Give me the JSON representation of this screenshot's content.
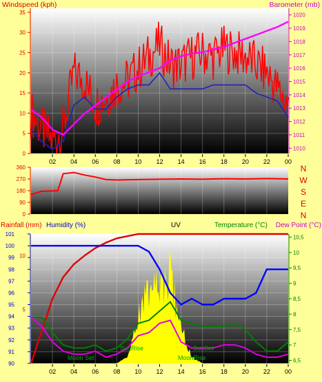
{
  "colors": {
    "bg": "#ffff99",
    "wind_speed": "#ff0000",
    "wind_avg": "#2020c0",
    "barometer": "#ff00ff",
    "rain": "#e00000",
    "humidity": "#0000ff",
    "temperature": "#008000",
    "dewpoint": "#e000e0",
    "uv": "#ffff00",
    "sun": "#00cc00"
  },
  "top": {
    "left_label": "Windspeed (kph)",
    "right_label": "Barometer (mb)",
    "title": "",
    "left_ticks": [
      0,
      5,
      10,
      15,
      20,
      25,
      30,
      35
    ],
    "right_ticks": [
      1010,
      1011,
      1012,
      1013,
      1014,
      1015,
      1016,
      1017,
      1018,
      1019,
      1020
    ]
  },
  "mid": {
    "left_ticks": [
      0,
      90,
      180,
      270,
      360
    ],
    "compass": [
      "N",
      "W",
      "S",
      "E",
      "N"
    ]
  },
  "bottom": {
    "rain_label": "Rainfall (mm)",
    "humidity_label": "Humidity (%)",
    "uv_label": "UV",
    "temp_label": "Temperature (°C)",
    "dew_label": "Dew Point (°C)",
    "rain_ticks": [
      5,
      10
    ],
    "humidity_ticks": [
      90,
      91,
      92,
      93,
      94,
      95,
      96,
      97,
      98,
      99,
      100,
      101
    ],
    "temp_ticks": [
      "6,5",
      "7",
      "7,5",
      "8",
      "8,5",
      "9",
      "9,5",
      "10",
      "10,5"
    ],
    "sun_labels": {
      "moon_set": "Moon Set",
      "sun_rise": "SunRise",
      "sun_set": "SunSet",
      "moon_rise": "MoonRise"
    }
  },
  "x_ticks": [
    "02",
    "04",
    "06",
    "08",
    "10",
    "12",
    "14",
    "16",
    "18",
    "20",
    "22",
    "00"
  ],
  "chart_data": [
    {
      "type": "line",
      "name": "wind-barometer",
      "x_hours": [
        0,
        1,
        2,
        3,
        4,
        5,
        6,
        7,
        8,
        9,
        10,
        11,
        12,
        13,
        14,
        15,
        16,
        17,
        18,
        19,
        20,
        21,
        22,
        23,
        24
      ],
      "series": [
        {
          "name": "Windspeed (kph)",
          "axis": "left",
          "values": [
            10,
            6,
            3,
            6,
            20,
            18,
            12,
            14,
            17,
            18,
            21,
            24,
            27,
            22,
            22,
            24,
            25,
            24,
            26,
            25,
            24,
            22,
            20,
            16,
            12
          ]
        },
        {
          "name": "Windspeed (kph)",
          "axis": "left",
          "values": [
            6,
            3,
            1,
            3,
            12,
            14,
            11,
            11,
            14,
            16,
            17,
            17,
            20,
            16,
            16,
            16,
            16,
            17,
            17,
            17,
            17,
            15,
            14,
            13,
            9
          ]
        },
        {
          "name": "Barometer (mb)",
          "axis": "right",
          "values": [
            1012.9,
            1012.3,
            1011.4,
            1011.0,
            1011.8,
            1012.6,
            1013.2,
            1013.8,
            1014.4,
            1015.0,
            1015.4,
            1015.7,
            1016.0,
            1016.6,
            1016.9,
            1017.1,
            1017.2,
            1017.4,
            1017.6,
            1017.9,
            1018.2,
            1018.5,
            1018.8,
            1019.1,
            1019.5
          ]
        }
      ],
      "ylim_left": [
        0,
        36
      ],
      "ylim_right": [
        1009.6,
        1020.5
      ]
    },
    {
      "type": "line",
      "name": "wind-direction",
      "x_hours": [
        0,
        1,
        2,
        2.5,
        3,
        4,
        5,
        6,
        7,
        8,
        10,
        12,
        14,
        16,
        18,
        20,
        22,
        24
      ],
      "series": [
        {
          "name": "",
          "values": [
            150,
            175,
            178,
            180,
            310,
            320,
            300,
            285,
            265,
            262,
            265,
            268,
            270,
            268,
            272,
            270,
            273,
            270
          ]
        }
      ],
      "ylim": [
        0,
        360
      ]
    },
    {
      "type": "line",
      "name": "rain-humidity-uv-temperature",
      "x_hours": [
        0,
        1,
        2,
        3,
        4,
        5,
        6,
        7,
        8,
        9,
        10,
        11,
        12,
        13,
        14,
        15,
        16,
        17,
        18,
        19,
        20,
        21,
        22,
        23,
        24
      ],
      "series": [
        {
          "name": "Rainfall (mm)",
          "axis": "rain",
          "values": [
            0,
            3,
            6,
            8,
            9.2,
            10,
            10.7,
            11.2,
            11.6,
            11.8,
            12,
            12,
            12,
            12,
            12,
            12,
            12,
            12,
            12,
            12,
            12,
            12,
            12,
            12,
            12
          ]
        },
        {
          "name": "Humidity (%)",
          "axis": "humidity",
          "values": [
            100,
            100,
            100,
            100,
            100,
            100,
            100,
            100,
            100,
            100,
            100,
            99.5,
            98,
            96,
            95,
            95.5,
            95,
            95,
            95.5,
            95.5,
            95.5,
            96,
            98,
            98,
            98
          ]
        },
        {
          "name": "UV",
          "axis": "humidity",
          "values": [
            0,
            0,
            0,
            0,
            0,
            0,
            0,
            0,
            0,
            0.5,
            4,
            5.5,
            6,
            7,
            3,
            0.5,
            0,
            0,
            0,
            0,
            0,
            0,
            0,
            0,
            0
          ]
        },
        {
          "name": "Temperature (°C)",
          "axis": "temp",
          "values": [
            7.9,
            7.9,
            7.4,
            7.0,
            6.9,
            6.9,
            7.0,
            6.8,
            6.9,
            7.2,
            7.7,
            7.8,
            8.1,
            8.4,
            7.8,
            7.7,
            7.6,
            7.6,
            7.6,
            7.7,
            7.5,
            7.1,
            6.8,
            6.8,
            7.1
          ]
        },
        {
          "name": "Dew Point (°C)",
          "axis": "temp",
          "values": [
            7.9,
            7.6,
            7.1,
            6.8,
            6.7,
            6.7,
            6.8,
            6.6,
            6.7,
            6.9,
            7.3,
            7.4,
            7.7,
            7.8,
            7.1,
            6.9,
            6.9,
            6.9,
            7.0,
            7.0,
            6.9,
            6.7,
            6.6,
            6.6,
            6.7
          ]
        }
      ],
      "ylim_humidity": [
        90,
        101
      ],
      "ylim_temp": [
        6.4,
        10.6
      ]
    }
  ]
}
